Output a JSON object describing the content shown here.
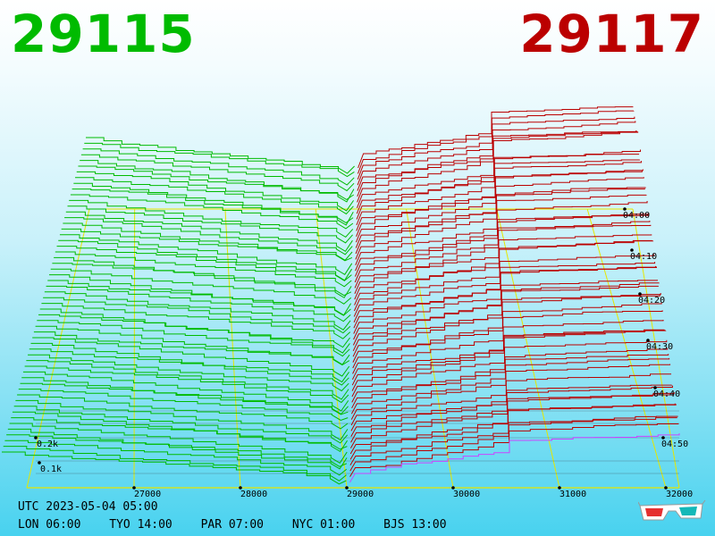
{
  "header": {
    "bid_price": "29115",
    "ask_price": "29117",
    "bid_color": "#00bb00",
    "ask_color": "#bb0000"
  },
  "chart_data": {
    "type": "3d-depth-chart",
    "price_axis": {
      "ticks": [
        "27000",
        "28000",
        "29000",
        "30000",
        "31000",
        "32000"
      ],
      "values": [
        27000,
        28000,
        29000,
        30000,
        31000,
        32000
      ],
      "range": [
        26000,
        32000
      ]
    },
    "volume_axis": {
      "ticks": [
        "0.1k",
        "0.2k"
      ],
      "values": [
        100,
        200
      ]
    },
    "time_axis": {
      "ticks": [
        "04:00",
        "04:10",
        "04:20",
        "04:30",
        "04:40",
        "04:50"
      ]
    },
    "bid_series_color": "#00bb00",
    "ask_series_color": "#bb0000",
    "latest_series_color": "#cc44ff",
    "grid_color": "#e6e600"
  },
  "footer": {
    "utc": "UTC 2023-05-04 05:00",
    "zones": [
      "LON 06:00",
      "TYO 14:00",
      "PAR 07:00",
      "NYC 01:00",
      "BJS 13:00"
    ]
  },
  "icons": {
    "glasses": "3d-glasses-icon"
  }
}
